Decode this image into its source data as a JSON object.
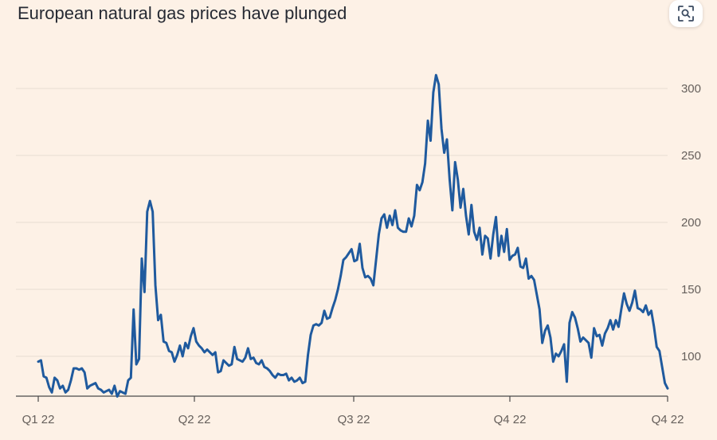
{
  "title": "European natural gas prices have plunged",
  "toolbar": {
    "share_icon": "image-search-icon"
  },
  "colors": {
    "background": "#fdf1e6",
    "line": "#1f5a9e",
    "grid": "#e8ddd3",
    "text": "#66605c"
  },
  "chart_data": {
    "type": "line",
    "title": "European natural gas prices have plunged",
    "xlabel": "",
    "ylabel": "",
    "x_ticks": [
      "Q1 22",
      "Q2 22",
      "Q3 22",
      "Q4 22",
      "Q4 22"
    ],
    "y_ticks": [
      100,
      150,
      200,
      250,
      300
    ],
    "ylim": [
      70,
      312
    ],
    "y_axis_side": "right",
    "grid": "horizontal",
    "series": [
      {
        "values": [
          96,
          97,
          85,
          84,
          77,
          73,
          84,
          82,
          76,
          78,
          73,
          75,
          82,
          91,
          91,
          90,
          91,
          88,
          76,
          78,
          79,
          80,
          76,
          75,
          73,
          74,
          75,
          72,
          78,
          70,
          74,
          73,
          72,
          82,
          84,
          135,
          94,
          98,
          173,
          148,
          208,
          216,
          208,
          153,
          127,
          131,
          111,
          110,
          104,
          103,
          96,
          101,
          108,
          100,
          110,
          106,
          115,
          121,
          111,
          108,
          106,
          103,
          105,
          103,
          101,
          103,
          88,
          89,
          97,
          95,
          93,
          94,
          107,
          98,
          97,
          96,
          99,
          106,
          98,
          99,
          95,
          94,
          97,
          92,
          91,
          89,
          86,
          84,
          87,
          86,
          86,
          87,
          82,
          84,
          81,
          82,
          84,
          80,
          81,
          101,
          116,
          123,
          124,
          123,
          125,
          134,
          128,
          129,
          136,
          142,
          150,
          160,
          172,
          174,
          177,
          180,
          171,
          172,
          184,
          166,
          159,
          160,
          158,
          153,
          172,
          191,
          203,
          206,
          196,
          205,
          198,
          209,
          196,
          194,
          193,
          193,
          203,
          197,
          205,
          228,
          224,
          230,
          244,
          276,
          261,
          297,
          310,
          303,
          270,
          252,
          262,
          232,
          209,
          245,
          232,
          211,
          225,
          205,
          191,
          213,
          193,
          187,
          196,
          176,
          190,
          188,
          173,
          191,
          204,
          175,
          190,
          178,
          195,
          172,
          175,
          176,
          181,
          167,
          166,
          173,
          158,
          160,
          157,
          146,
          135,
          110,
          119,
          123,
          114,
          96,
          102,
          100,
          104,
          109,
          81,
          125,
          133,
          129,
          121,
          111,
          114,
          112,
          110,
          99,
          121,
          115,
          116,
          108,
          117,
          121,
          127,
          120,
          127,
          122,
          135,
          147,
          139,
          134,
          140,
          149,
          136,
          135,
          133,
          138,
          131,
          134,
          122,
          107,
          104,
          92,
          80,
          76
        ]
      }
    ]
  }
}
